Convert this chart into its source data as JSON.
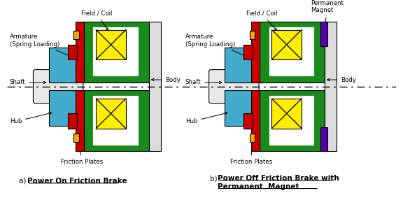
{
  "green": "#1a8a1a",
  "red": "#CC0000",
  "blue": "#44AACC",
  "yellow": "#FFEE00",
  "orange": "#FFA500",
  "gray_light": "#DCDCDC",
  "gray_shaft": "#E8E8E8",
  "purple": "#5500AA",
  "white": "#FFFFFF",
  "black": "#000000",
  "label_armature": "Armature\n(Spring Loading)",
  "label_shaft": "Shaft",
  "label_hub": "Hub",
  "label_field": "Field / Coil",
  "label_body": "Body",
  "label_friction": "Friction Plates",
  "label_magnet": "Permanent\nMagnet",
  "caption_a_prefix": "a) ",
  "caption_a_text": "Power On Friction Brake",
  "caption_b_prefix": "b) ",
  "caption_b_line1": "Power Off Friction Brake with",
  "caption_b_line2": "Permanent  Magnet"
}
